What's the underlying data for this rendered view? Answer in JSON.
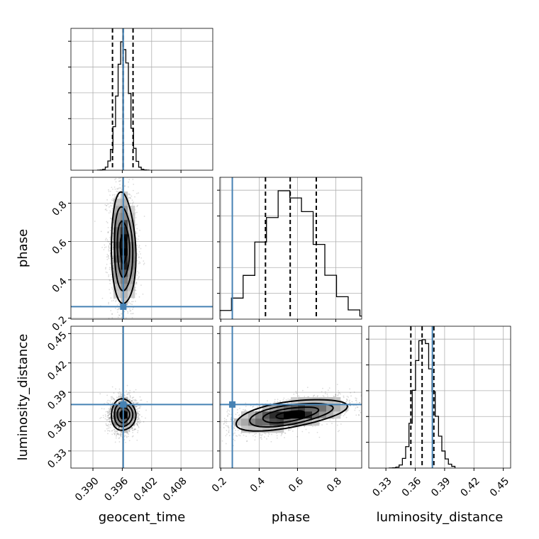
{
  "chart_data": {
    "type": "corner",
    "parameters": [
      "geocent_time",
      "phase",
      "luminosity_distance"
    ],
    "axis_labels": [
      "geocent_time",
      "phase",
      "luminosity_distance"
    ],
    "ranges": [
      [
        0.3855,
        0.4145
      ],
      [
        0.195,
        0.935
      ],
      [
        0.3125,
        0.4575
      ]
    ],
    "ticks": [
      [
        0.39,
        0.396,
        0.402,
        0.408
      ],
      [
        0.2,
        0.4,
        0.6,
        0.8
      ],
      [
        0.33,
        0.36,
        0.39,
        0.42,
        0.45
      ]
    ],
    "tick_labels": [
      [
        "0.390",
        "0.396",
        "0.402",
        "0.408"
      ],
      [
        "0.2",
        "0.4",
        "0.6",
        "0.8"
      ],
      [
        "0.33",
        "0.36",
        "0.39",
        "0.42",
        "0.45"
      ]
    ],
    "truths": [
      0.3962,
      0.26,
      0.3775
    ],
    "quantiles": [
      [
        0.394,
        0.3962,
        0.3982
      ],
      [
        0.433,
        0.562,
        0.698
      ],
      [
        0.3555,
        0.367,
        0.379
      ]
    ],
    "posterior_means": [
      0.3962,
      0.56,
      0.367
    ],
    "posterior_sds": [
      0.00125,
      0.145,
      0.008
    ],
    "correlations": {
      "0-1": -0.1,
      "0-2": 0.0,
      "1-2": 0.55
    },
    "grid": true,
    "truth_color": "#4682b4",
    "hist_color": "#000000"
  }
}
